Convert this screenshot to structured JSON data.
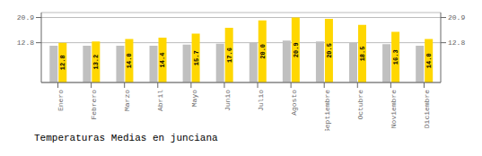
{
  "chart_data": {
    "type": "bar",
    "title": "Temperaturas Medias en junciana",
    "categories": [
      "Enero",
      "Febrero",
      "Marzo",
      "Abril",
      "Mayo",
      "Junio",
      "Julio",
      "Agosto",
      "Septiembre",
      "Octubre",
      "Noviembre",
      "Diciembre"
    ],
    "series": [
      {
        "color": "#C0C0C0",
        "values": [
          11.8,
          11.8,
          11.8,
          11.8,
          12.2,
          12.5,
          13.0,
          13.5,
          13.2,
          12.8,
          12.3,
          11.8
        ]
      },
      {
        "color": "#FFD700",
        "values": [
          12.8,
          13.2,
          14.0,
          14.4,
          15.7,
          17.6,
          20.0,
          20.9,
          20.5,
          18.5,
          16.3,
          14.0
        ],
        "data_labels": true,
        "value_labels": [
          "12.8",
          "13.2",
          "14.0",
          "14.4",
          "15.7",
          "17.6",
          "20.0",
          "20.9",
          "20.5",
          "18.5",
          "16.3",
          "14.0"
        ]
      }
    ],
    "ylim": [
      0,
      22.5
    ],
    "yticks": [
      12.8,
      20.9
    ],
    "y2lim": [
      0,
      22.5
    ],
    "y2ticks": [
      12.8,
      20.9
    ],
    "grid": true
  }
}
